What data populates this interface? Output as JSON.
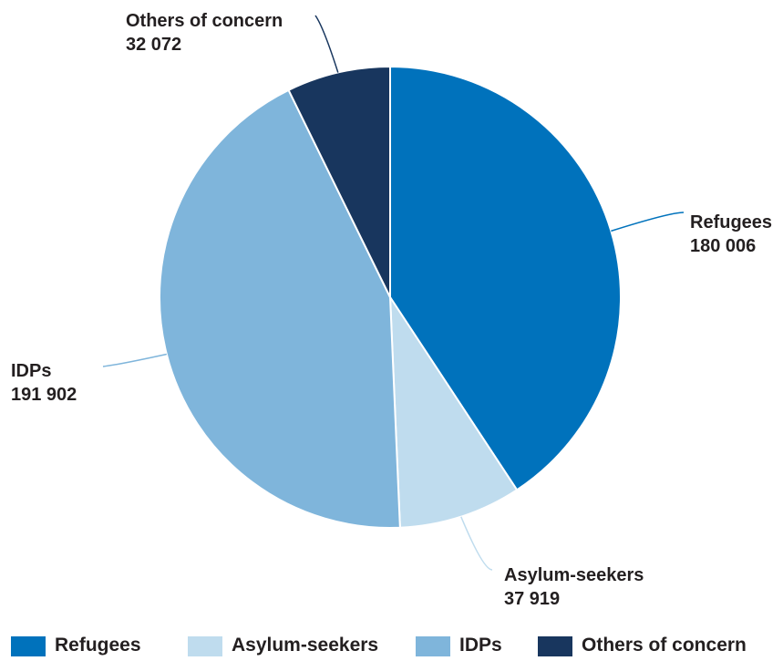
{
  "chart_data": {
    "type": "pie",
    "series": [
      {
        "name": "Refugees",
        "value": 180006,
        "value_label": "180 006",
        "color": "#0072bc"
      },
      {
        "name": "Asylum-seekers",
        "value": 37919,
        "value_label": "37 919",
        "color": "#bfdcee"
      },
      {
        "name": "IDPs",
        "value": 191902,
        "value_label": "191 902",
        "color": "#7fb5db"
      },
      {
        "name": "Others of concern",
        "value": 32072,
        "value_label": "32 072",
        "color": "#18365e"
      }
    ],
    "legend_position": "bottom"
  }
}
